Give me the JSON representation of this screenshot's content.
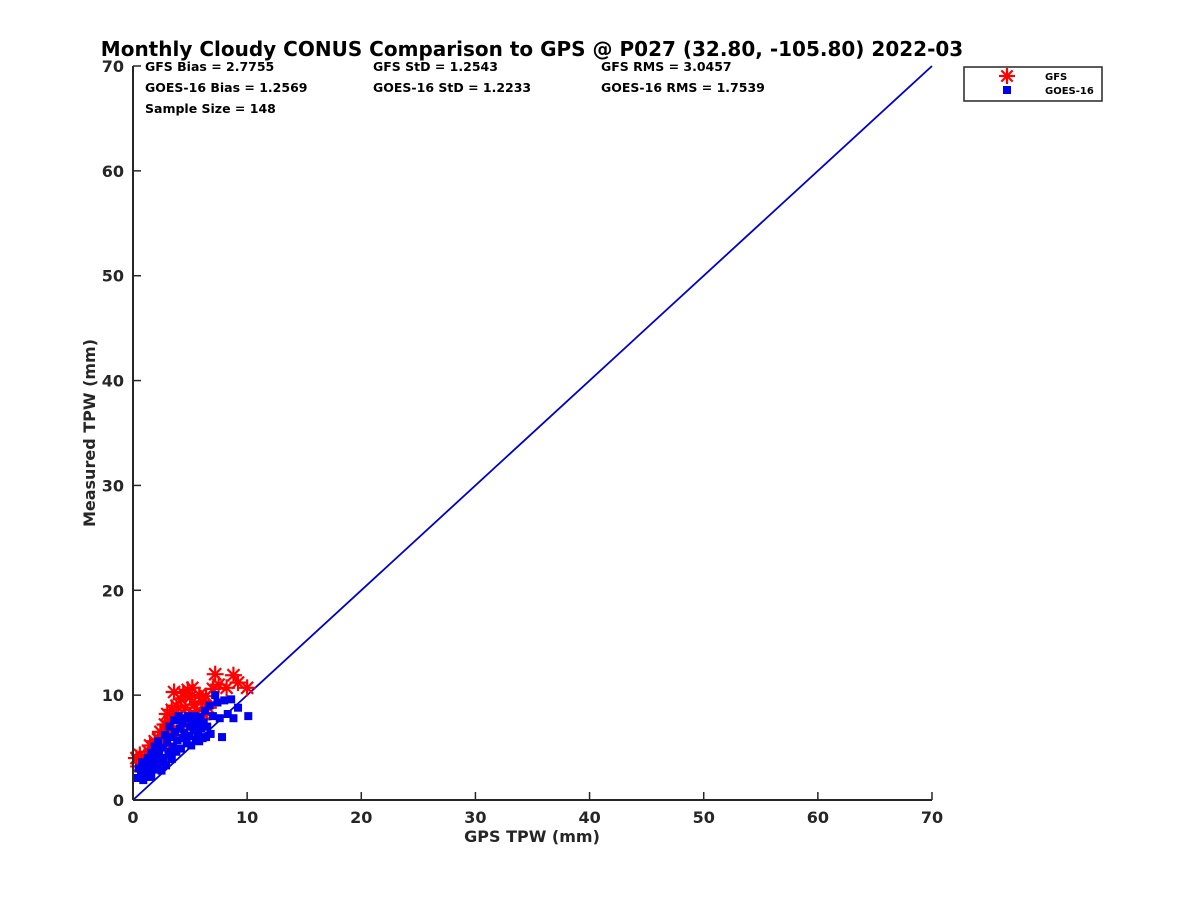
{
  "chart_data": {
    "type": "scatter",
    "title": "Monthly Cloudy CONUS Comparison to GPS @ P027 (32.80, -105.80) 2022-03",
    "xlabel": "GPS TPW (mm)",
    "ylabel": "Measured TPW (mm)",
    "xlim": [
      0,
      70
    ],
    "ylim": [
      0,
      70
    ],
    "xticks": [
      0,
      10,
      20,
      30,
      40,
      50,
      60,
      70
    ],
    "yticks": [
      0,
      10,
      20,
      30,
      40,
      50,
      60,
      70
    ],
    "grid": false,
    "legend_position": "outside-top-right",
    "stats": [
      [
        "GFS Bias = 2.7755",
        "GFS StD = 1.2543",
        "GFS RMS = 3.0457"
      ],
      [
        "GOES-16 Bias = 1.2569",
        "GOES-16 StD = 1.2233",
        "GOES-16 RMS = 1.7539"
      ],
      [
        "Sample Size = 148"
      ]
    ],
    "reference_line": {
      "x": [
        0,
        70
      ],
      "y": [
        0,
        70
      ],
      "color": "#0000cc"
    },
    "series": [
      {
        "name": "GFS",
        "marker": "asterisk",
        "color": "#ff0000",
        "points": [
          [
            0.3,
            4.0
          ],
          [
            0.5,
            3.2
          ],
          [
            0.6,
            4.3
          ],
          [
            0.8,
            2.8
          ],
          [
            1.0,
            4.1
          ],
          [
            1.2,
            3.5
          ],
          [
            1.4,
            4.6
          ],
          [
            1.5,
            5.2
          ],
          [
            1.7,
            4.4
          ],
          [
            1.9,
            5.6
          ],
          [
            2.0,
            4.9
          ],
          [
            2.2,
            5.8
          ],
          [
            2.4,
            6.5
          ],
          [
            2.6,
            6.0
          ],
          [
            2.8,
            7.2
          ],
          [
            3.0,
            6.6
          ],
          [
            3.0,
            8.2
          ],
          [
            3.2,
            7.5
          ],
          [
            3.4,
            8.6
          ],
          [
            3.6,
            10.3
          ],
          [
            3.8,
            9.0
          ],
          [
            4.0,
            8.0
          ],
          [
            4.2,
            9.6
          ],
          [
            4.4,
            10.2
          ],
          [
            4.6,
            8.8
          ],
          [
            4.8,
            10.5
          ],
          [
            5.0,
            9.8
          ],
          [
            5.2,
            10.7
          ],
          [
            5.4,
            9.1
          ],
          [
            5.6,
            8.5
          ],
          [
            5.8,
            10.0
          ],
          [
            6.0,
            9.4
          ],
          [
            6.2,
            8.2
          ],
          [
            6.4,
            9.9
          ],
          [
            6.6,
            8.8
          ],
          [
            7.0,
            10.6
          ],
          [
            7.2,
            12.0
          ],
          [
            7.5,
            11.0
          ],
          [
            8.2,
            10.7
          ],
          [
            8.8,
            11.9
          ],
          [
            9.2,
            11.2
          ],
          [
            10.0,
            10.7
          ],
          [
            1.2,
            2.8
          ],
          [
            2.1,
            3.6
          ],
          [
            2.9,
            5.3
          ],
          [
            3.6,
            6.2
          ],
          [
            4.3,
            7.0
          ],
          [
            5.1,
            7.6
          ],
          [
            6.1,
            7.7
          ]
        ]
      },
      {
        "name": "GOES-16",
        "marker": "square",
        "color": "#0000ee",
        "points": [
          [
            0.4,
            2.1
          ],
          [
            0.5,
            3.0
          ],
          [
            0.7,
            2.4
          ],
          [
            0.8,
            3.6
          ],
          [
            1.0,
            2.2
          ],
          [
            1.1,
            3.1
          ],
          [
            1.2,
            2.7
          ],
          [
            1.3,
            4.0
          ],
          [
            1.4,
            3.3
          ],
          [
            1.5,
            2.5
          ],
          [
            1.6,
            4.5
          ],
          [
            1.7,
            3.7
          ],
          [
            1.8,
            2.9
          ],
          [
            1.9,
            5.1
          ],
          [
            2.0,
            4.2
          ],
          [
            2.1,
            3.2
          ],
          [
            2.2,
            5.6
          ],
          [
            2.3,
            4.7
          ],
          [
            2.4,
            3.6
          ],
          [
            2.5,
            2.8
          ],
          [
            2.6,
            5.0
          ],
          [
            2.7,
            4.0
          ],
          [
            2.8,
            6.2
          ],
          [
            2.9,
            3.3
          ],
          [
            3.0,
            5.5
          ],
          [
            3.1,
            4.4
          ],
          [
            3.2,
            7.0
          ],
          [
            3.3,
            6.0
          ],
          [
            3.4,
            3.9
          ],
          [
            3.5,
            5.1
          ],
          [
            3.6,
            7.6
          ],
          [
            3.7,
            6.5
          ],
          [
            3.8,
            4.6
          ],
          [
            3.9,
            5.7
          ],
          [
            4.0,
            8.0
          ],
          [
            4.1,
            6.8
          ],
          [
            4.2,
            4.9
          ],
          [
            4.3,
            7.3
          ],
          [
            4.4,
            5.9
          ],
          [
            4.5,
            6.4
          ],
          [
            4.6,
            7.8
          ],
          [
            4.7,
            5.4
          ],
          [
            4.8,
            8.0
          ],
          [
            4.9,
            6.1
          ],
          [
            5.0,
            7.0
          ],
          [
            5.1,
            5.2
          ],
          [
            5.2,
            7.7
          ],
          [
            5.3,
            6.6
          ],
          [
            5.4,
            8.0
          ],
          [
            5.5,
            5.8
          ],
          [
            5.6,
            7.2
          ],
          [
            5.7,
            6.3
          ],
          [
            5.8,
            5.6
          ],
          [
            5.9,
            7.9
          ],
          [
            6.0,
            6.8
          ],
          [
            6.1,
            5.9
          ],
          [
            6.2,
            7.4
          ],
          [
            6.3,
            8.5
          ],
          [
            6.4,
            6.0
          ],
          [
            6.5,
            7.0
          ],
          [
            6.7,
            9.0
          ],
          [
            6.8,
            6.3
          ],
          [
            7.0,
            8.0
          ],
          [
            7.2,
            10.0
          ],
          [
            7.4,
            9.3
          ],
          [
            7.6,
            7.8
          ],
          [
            7.8,
            6.0
          ],
          [
            8.0,
            9.5
          ],
          [
            8.3,
            8.2
          ],
          [
            8.6,
            9.6
          ],
          [
            8.8,
            7.8
          ],
          [
            9.2,
            8.8
          ],
          [
            10.1,
            8.0
          ],
          [
            0.9,
            1.9
          ],
          [
            1.6,
            2.2
          ],
          [
            2.6,
            3.9
          ],
          [
            3.3,
            4.6
          ]
        ]
      }
    ]
  }
}
